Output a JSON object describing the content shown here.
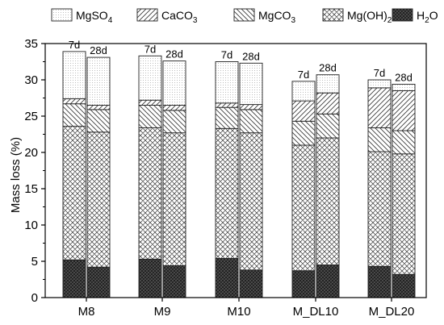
{
  "chart_data": {
    "type": "bar",
    "stacked": true,
    "title": "",
    "xlabel": "",
    "ylabel": "Mass loss (%)",
    "ylim": [
      0,
      35
    ],
    "yticks": [
      0,
      5,
      10,
      15,
      20,
      25,
      30,
      35
    ],
    "grid": false,
    "legend_position": "top",
    "groups": [
      "M8",
      "M9",
      "M10",
      "M_DL10",
      "M_DL20"
    ],
    "ages": [
      "7d",
      "28d"
    ],
    "legend": [
      {
        "key": "MgSO4",
        "text": "MgSO",
        "sub": "4",
        "tail": "",
        "pattern": "dots"
      },
      {
        "key": "CaCO3",
        "text": "CaCO",
        "sub": "3",
        "tail": "",
        "pattern": "diag"
      },
      {
        "key": "MgCO3",
        "text": "MgCO",
        "sub": "3",
        "tail": "",
        "pattern": "backdiag"
      },
      {
        "key": "MgOH2",
        "text": "Mg(OH)",
        "sub": "2",
        "tail": "",
        "pattern": "cross"
      },
      {
        "key": "H2O",
        "text": "H",
        "sub": "2",
        "tail": "O",
        "pattern": "dense"
      }
    ],
    "series": [
      {
        "name": "H2O",
        "values": [
          5.2,
          4.2,
          5.3,
          4.4,
          5.4,
          3.8,
          3.7,
          4.5,
          4.3,
          3.2
        ]
      },
      {
        "name": "Mg(OH)2",
        "values": [
          18.4,
          18.6,
          18.1,
          18.3,
          17.9,
          18.9,
          17.3,
          17.5,
          15.8,
          16.6
        ]
      },
      {
        "name": "MgCO3",
        "values": [
          3.1,
          3.1,
          3.1,
          3.1,
          2.9,
          3.2,
          3.3,
          3.3,
          3.3,
          3.2
        ]
      },
      {
        "name": "CaCO3",
        "values": [
          0.7,
          0.6,
          0.7,
          0.7,
          0.6,
          0.7,
          2.8,
          2.9,
          5.5,
          5.5
        ]
      },
      {
        "name": "MgSO4",
        "values": [
          6.5,
          6.6,
          6.1,
          6.1,
          5.7,
          5.7,
          2.7,
          2.5,
          1.1,
          0.9
        ]
      }
    ],
    "totals": [
      33.9,
      33.1,
      33.3,
      32.6,
      32.5,
      32.3,
      29.8,
      30.7,
      30.0,
      29.4
    ]
  }
}
